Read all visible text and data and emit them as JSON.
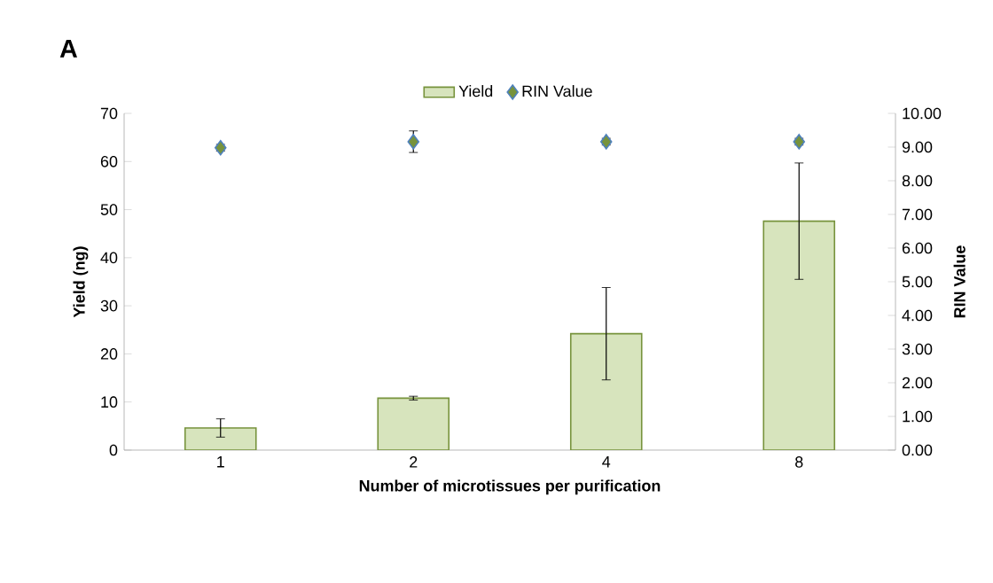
{
  "chart_data": {
    "type": "bar",
    "xlabel": "Number of microtissues per purification",
    "ylabel": "Yield (ng)",
    "y2label": "RIN Value",
    "categories": [
      "1",
      "2",
      "4",
      "8"
    ],
    "series": [
      {
        "name": "Yield",
        "color": "#d7e4bd",
        "values": [
          4.6,
          10.8,
          24.2,
          47.6
        ],
        "errors": [
          1.9,
          0.4,
          9.6,
          12.1
        ]
      },
      {
        "name": "RIN Value",
        "type": "scatter",
        "axis": "y2",
        "color": "#4f81bd",
        "marker": "diamond",
        "values": [
          8.98,
          9.16,
          9.16,
          9.16
        ],
        "errors": [
          0.1,
          0.32,
          0.1,
          0.1
        ]
      }
    ],
    "ylim": [
      0,
      70
    ],
    "yticks": [
      0,
      10,
      20,
      30,
      40,
      50,
      60,
      70
    ],
    "y2lim": [
      0,
      10
    ],
    "y2ticks": [
      {
        "value": 0,
        "label": "0.00"
      },
      {
        "value": 1,
        "label": "1.00"
      },
      {
        "value": 2,
        "label": "2.00"
      },
      {
        "value": 3,
        "label": "3.00"
      },
      {
        "value": 4,
        "label": "4.00"
      },
      {
        "value": 5,
        "label": "5.00"
      },
      {
        "value": 6,
        "label": "6.00"
      },
      {
        "value": 7,
        "label": "7.00"
      },
      {
        "value": 8,
        "label": "8.00"
      },
      {
        "value": 9,
        "label": "9.00"
      },
      {
        "value": 10,
        "label": "10.00"
      }
    ],
    "grid": false,
    "legend": "top",
    "annotations": [
      "A"
    ]
  }
}
